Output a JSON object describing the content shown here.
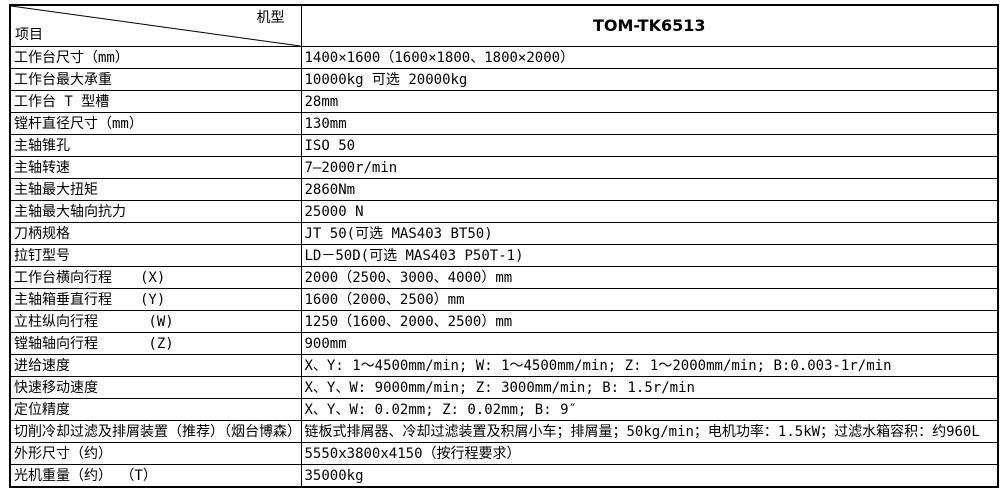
{
  "page": {
    "background": "#ffffff"
  },
  "table": {
    "colors": {
      "border": "#000000",
      "text": "#000000",
      "background": "#ffffff"
    },
    "header": {
      "model_axis_label": "机型",
      "item_axis_label": "项目",
      "model_name": "TOM-TK6513"
    },
    "rows": [
      {
        "label": "工作台尺寸（mm）",
        "value": "1400×1600（1600×1800、1800×2000）"
      },
      {
        "label": "工作台最大承重",
        "value": "10000kg 可选 20000kg"
      },
      {
        "label": "工作台 T 型槽",
        "value": "28mm"
      },
      {
        "label": "镗杆直径尺寸（mm）",
        "value": "130mm"
      },
      {
        "label": "主轴锥孔",
        "value": "ISO 50"
      },
      {
        "label": "主轴转速",
        "value": "7—2000r/min"
      },
      {
        "label": "主轴最大扭矩",
        "value": "2860Nm"
      },
      {
        "label": "主轴最大轴向抗力",
        "value": "25000 N"
      },
      {
        "label": "刀柄规格",
        "value": "JT 50(可选 MAS403 BT50)"
      },
      {
        "label": "拉钉型号",
        "value": "LD－50D(可选 MAS403 P50T-1)"
      },
      {
        "label": "工作台横向行程　　(X)",
        "value": "2000（2500、3000、4000）mm"
      },
      {
        "label": "主轴箱垂直行程　　(Y)",
        "value": "1600（2000、2500）mm"
      },
      {
        "label": "立柱纵向行程　　　 (W)",
        "value": "1250（1600、2000、2500）mm"
      },
      {
        "label": "镗轴轴向行程　　　 (Z)",
        "value": "900mm"
      },
      {
        "label": "进给速度",
        "value": "X、Y: 1～4500mm/min; W: 1～4500mm/min;  Z: 1～2000mm/min; B:0.003-1r/min"
      },
      {
        "label": "快速移动速度",
        "value": "X、Y、W:  9000mm/min;  Z: 3000mm/min;   B: 1.5r/min"
      },
      {
        "label": "定位精度",
        "value": "X、Y、W:  0.02mm;  Z:  0.02mm;  B: 9″"
      },
      {
        "label": "切削冷却过滤及排屑装置（推荐）（烟台博森）",
        "value": "链板式排屑器、冷却过滤装置及积屑小车；排屑量；50kg/min；电机功率：1.5kW；过滤水箱容积：约960L"
      },
      {
        "label": "外形尺寸（约）",
        "value": "5550x3800x4150（按行程要求）"
      },
      {
        "label": "光机重量（约） （T）",
        "value": "35000kg"
      }
    ]
  }
}
